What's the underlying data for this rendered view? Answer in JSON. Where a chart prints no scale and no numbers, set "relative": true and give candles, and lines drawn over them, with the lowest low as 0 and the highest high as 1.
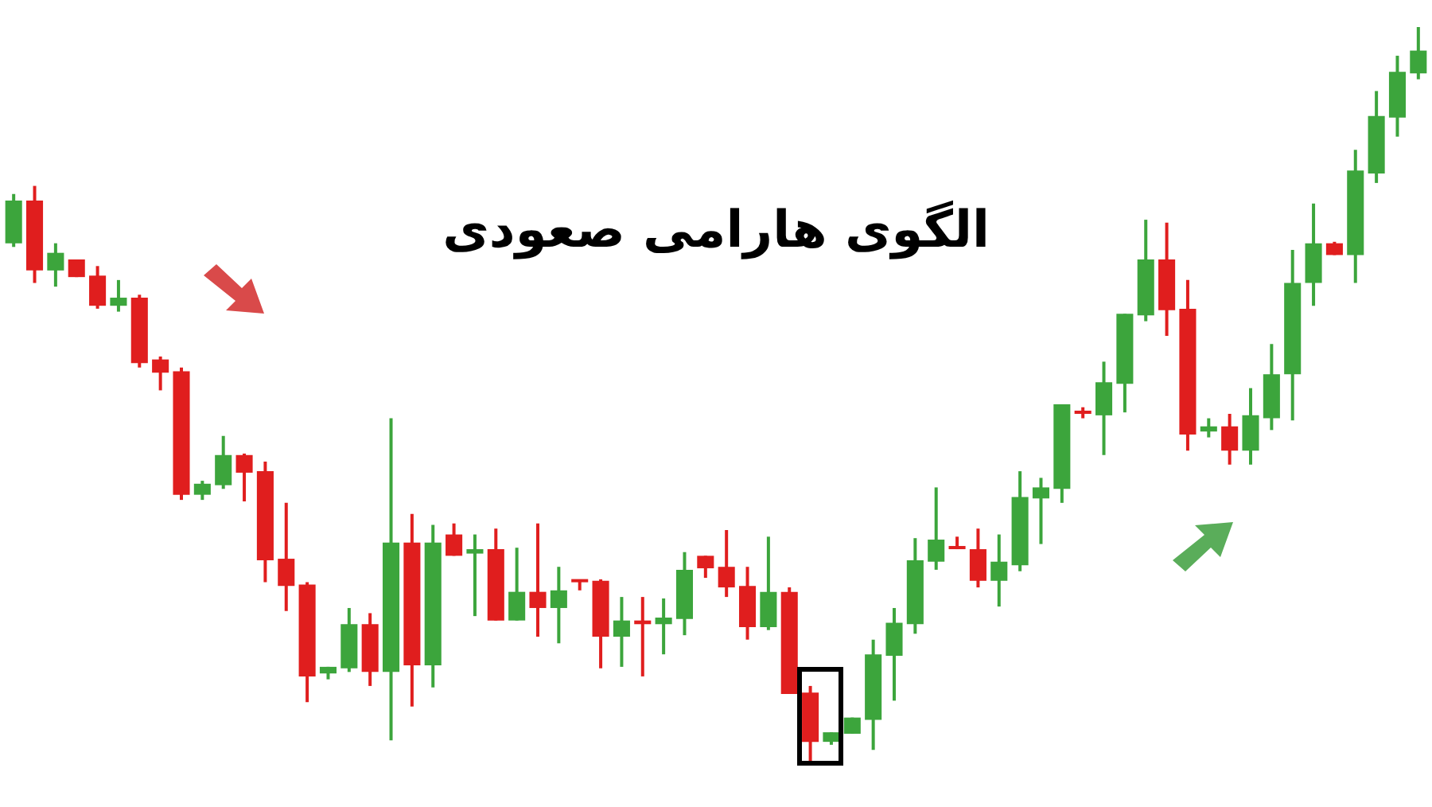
{
  "chart_data": {
    "type": "candlestick",
    "title": "الگوی هارامی صعودی",
    "relative": true,
    "categories": [
      null,
      null,
      null,
      null,
      null,
      null,
      null,
      null,
      null,
      null,
      null,
      null,
      null,
      null,
      null,
      null,
      null,
      null,
      null,
      null,
      null,
      null,
      null,
      null,
      null,
      null,
      null,
      null,
      null,
      null,
      null,
      null,
      null,
      null,
      null,
      null,
      null,
      null,
      null,
      null,
      null,
      null,
      null,
      null,
      null,
      null,
      null,
      null,
      null,
      null,
      null,
      null,
      null,
      null,
      null,
      null,
      null,
      null,
      null,
      null,
      null,
      null,
      null,
      null,
      null,
      null,
      null,
      null
    ],
    "ohlc": [
      [
        0.706,
        0.773,
        0.701,
        0.764
      ],
      [
        0.764,
        0.784,
        0.652,
        0.669
      ],
      [
        0.669,
        0.706,
        0.647,
        0.693
      ],
      [
        0.684,
        0.684,
        0.66,
        0.66
      ],
      [
        0.662,
        0.675,
        0.617,
        0.621
      ],
      [
        0.621,
        0.656,
        0.613,
        0.632
      ],
      [
        0.632,
        0.636,
        0.537,
        0.543
      ],
      [
        0.548,
        0.552,
        0.506,
        0.53
      ],
      [
        0.532,
        0.537,
        0.357,
        0.364
      ],
      [
        0.364,
        0.383,
        0.357,
        0.379
      ],
      [
        0.377,
        0.444,
        0.372,
        0.418
      ],
      [
        0.418,
        0.42,
        0.355,
        0.394
      ],
      [
        0.396,
        0.409,
        0.245,
        0.275
      ],
      [
        0.277,
        0.353,
        0.206,
        0.24
      ],
      [
        0.242,
        0.245,
        0.082,
        0.117
      ],
      [
        0.121,
        0.13,
        0.113,
        0.13
      ],
      [
        0.128,
        0.21,
        0.123,
        0.188
      ],
      [
        0.188,
        0.203,
        0.104,
        0.123
      ],
      [
        0.123,
        0.468,
        0.03,
        0.299
      ],
      [
        0.299,
        0.338,
        0.076,
        0.132
      ],
      [
        0.132,
        0.323,
        0.102,
        0.299
      ],
      [
        0.31,
        0.325,
        0.281,
        0.281
      ],
      [
        0.284,
        0.31,
        0.199,
        0.29
      ],
      [
        0.29,
        0.318,
        0.193,
        0.193
      ],
      [
        0.193,
        0.292,
        0.193,
        0.232
      ],
      [
        0.232,
        0.325,
        0.171,
        0.21
      ],
      [
        0.21,
        0.266,
        0.162,
        0.234
      ],
      [
        0.247,
        0.247,
        0.234,
        0.245
      ],
      [
        0.247,
        0.249,
        0.128,
        0.171
      ],
      [
        0.171,
        0.225,
        0.13,
        0.193
      ],
      [
        0.193,
        0.225,
        0.117,
        0.188
      ],
      [
        0.188,
        0.223,
        0.147,
        0.197
      ],
      [
        0.195,
        0.286,
        0.173,
        0.262
      ],
      [
        0.281,
        0.281,
        0.251,
        0.264
      ],
      [
        0.266,
        0.316,
        0.225,
        0.238
      ],
      [
        0.24,
        0.266,
        0.167,
        0.184
      ],
      [
        0.184,
        0.307,
        0.18,
        0.232
      ],
      [
        0.232,
        0.238,
        0.093,
        0.093
      ],
      [
        0.095,
        0.104,
        0,
        0.028
      ],
      [
        0.028,
        0.041,
        0.024,
        0.041
      ],
      [
        0.039,
        0.061,
        0.039,
        0.061
      ],
      [
        0.058,
        0.167,
        0.017,
        0.147
      ],
      [
        0.145,
        0.21,
        0.084,
        0.19
      ],
      [
        0.188,
        0.305,
        0.175,
        0.275
      ],
      [
        0.273,
        0.374,
        0.262,
        0.303
      ],
      [
        0.292,
        0.307,
        0.29,
        0.29
      ],
      [
        0.29,
        0.318,
        0.238,
        0.247
      ],
      [
        0.247,
        0.31,
        0.212,
        0.273
      ],
      [
        0.268,
        0.396,
        0.26,
        0.361
      ],
      [
        0.359,
        0.387,
        0.297,
        0.374
      ],
      [
        0.372,
        0.487,
        0.353,
        0.487
      ],
      [
        0.476,
        0.483,
        0.468,
        0.474
      ],
      [
        0.472,
        0.545,
        0.418,
        0.517
      ],
      [
        0.515,
        0.61,
        0.476,
        0.61
      ],
      [
        0.608,
        0.738,
        0.6,
        0.684
      ],
      [
        0.684,
        0.734,
        0.58,
        0.615
      ],
      [
        0.617,
        0.656,
        0.424,
        0.446
      ],
      [
        0.45,
        0.468,
        0.442,
        0.457
      ],
      [
        0.457,
        0.474,
        0.405,
        0.424
      ],
      [
        0.424,
        0.509,
        0.405,
        0.472
      ],
      [
        0.468,
        0.569,
        0.452,
        0.528
      ],
      [
        0.528,
        0.697,
        0.465,
        0.652
      ],
      [
        0.652,
        0.76,
        0.621,
        0.706
      ],
      [
        0.706,
        0.708,
        0.69,
        0.69
      ],
      [
        0.69,
        0.833,
        0.652,
        0.805
      ],
      [
        0.801,
        0.913,
        0.788,
        0.879
      ],
      [
        0.877,
        0.961,
        0.851,
        0.939
      ],
      [
        0.937,
        1,
        0.929,
        0.968
      ]
    ],
    "colors": [
      "#3ca53c",
      "#e01e1e",
      "#3ca53c",
      "#e01e1e",
      "#e01e1e",
      "#3ca53c",
      "#e01e1e",
      "#e01e1e",
      "#e01e1e",
      "#3ca53c",
      "#3ca53c",
      "#e01e1e",
      "#e01e1e",
      "#e01e1e",
      "#e01e1e",
      "#3ca53c",
      "#3ca53c",
      "#e01e1e",
      "#3ca53c",
      "#e01e1e",
      "#3ca53c",
      "#e01e1e",
      "#3ca53c",
      "#e01e1e",
      "#3ca53c",
      "#e01e1e",
      "#3ca53c",
      "#e01e1e",
      "#e01e1e",
      "#3ca53c",
      "#e01e1e",
      "#3ca53c",
      "#3ca53c",
      "#e01e1e",
      "#e01e1e",
      "#e01e1e",
      "#3ca53c",
      "#e01e1e",
      "#e01e1e",
      "#3ca53c",
      "#3ca53c",
      "#3ca53c",
      "#3ca53c",
      "#3ca53c",
      "#3ca53c",
      "#e01e1e",
      "#e01e1e",
      "#3ca53c",
      "#3ca53c",
      "#3ca53c",
      "#3ca53c",
      "#e01e1e",
      "#3ca53c",
      "#3ca53c",
      "#3ca53c",
      "#e01e1e",
      "#e01e1e",
      "#3ca53c",
      "#e01e1e",
      "#3ca53c",
      "#3ca53c",
      "#3ca53c",
      "#3ca53c",
      "#e01e1e",
      "#3ca53c",
      "#3ca53c",
      "#3ca53c",
      "#3ca53c"
    ]
  }
}
